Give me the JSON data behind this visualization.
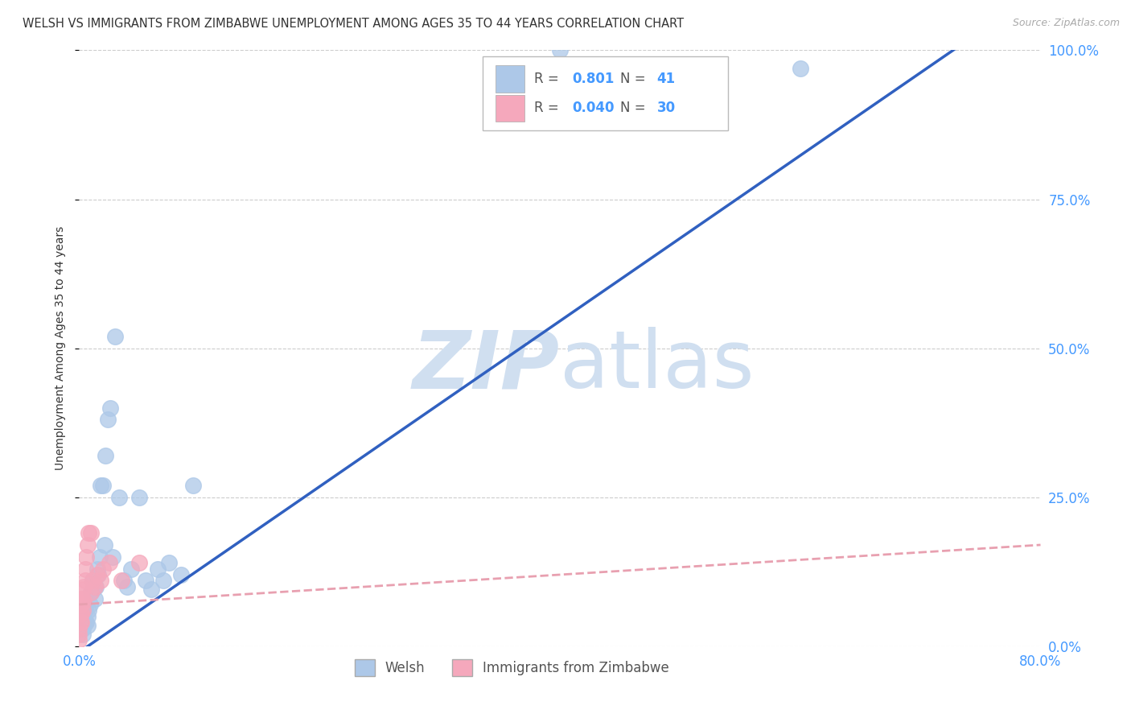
{
  "title": "WELSH VS IMMIGRANTS FROM ZIMBABWE UNEMPLOYMENT AMONG AGES 35 TO 44 YEARS CORRELATION CHART",
  "source": "Source: ZipAtlas.com",
  "ylabel": "Unemployment Among Ages 35 to 44 years",
  "ytick_values": [
    0.0,
    0.25,
    0.5,
    0.75,
    1.0
  ],
  "ytick_labels": [
    "0.0%",
    "25.0%",
    "50.0%",
    "75.0%",
    "100.0%"
  ],
  "xtick_values": [
    0.0,
    0.8
  ],
  "xtick_labels": [
    "0.0%",
    "80.0%"
  ],
  "R_welsh": 0.801,
  "N_welsh": 41,
  "R_zimbabwe": 0.04,
  "N_zimbabwe": 30,
  "welsh_color": "#adc8e8",
  "zimbabwe_color": "#f5a8bc",
  "welsh_line_color": "#3060c0",
  "zimbabwe_line_color": "#e8a0b0",
  "background_color": "#ffffff",
  "watermark_color": "#d0dff0",
  "welsh_x": [
    0.003,
    0.003,
    0.004,
    0.005,
    0.005,
    0.006,
    0.007,
    0.007,
    0.008,
    0.009,
    0.01,
    0.011,
    0.012,
    0.013,
    0.014,
    0.015,
    0.016,
    0.017,
    0.018,
    0.02,
    0.021,
    0.022,
    0.024,
    0.026,
    0.028,
    0.03,
    0.033,
    0.037,
    0.04,
    0.043,
    0.05,
    0.055,
    0.06,
    0.065,
    0.07,
    0.075,
    0.085,
    0.095,
    0.38,
    0.4,
    0.6
  ],
  "welsh_y": [
    0.02,
    0.03,
    0.035,
    0.04,
    0.06,
    0.04,
    0.035,
    0.05,
    0.06,
    0.07,
    0.09,
    0.11,
    0.095,
    0.08,
    0.1,
    0.13,
    0.12,
    0.15,
    0.27,
    0.27,
    0.17,
    0.32,
    0.38,
    0.4,
    0.15,
    0.52,
    0.25,
    0.11,
    0.1,
    0.13,
    0.25,
    0.11,
    0.095,
    0.13,
    0.11,
    0.14,
    0.12,
    0.27,
    0.97,
    1.0,
    0.97
  ],
  "zimbabwe_x": [
    0.0,
    0.0,
    0.0,
    0.001,
    0.001,
    0.001,
    0.001,
    0.002,
    0.002,
    0.002,
    0.003,
    0.003,
    0.003,
    0.004,
    0.004,
    0.005,
    0.005,
    0.006,
    0.007,
    0.008,
    0.01,
    0.01,
    0.011,
    0.013,
    0.015,
    0.018,
    0.02,
    0.025,
    0.035,
    0.05
  ],
  "zimbabwe_y": [
    0.01,
    0.02,
    0.03,
    0.04,
    0.055,
    0.07,
    0.08,
    0.04,
    0.055,
    0.075,
    0.06,
    0.08,
    0.095,
    0.075,
    0.1,
    0.11,
    0.13,
    0.15,
    0.17,
    0.19,
    0.19,
    0.09,
    0.11,
    0.1,
    0.12,
    0.11,
    0.13,
    0.14,
    0.11,
    0.14
  ],
  "xlim": [
    0.0,
    0.8
  ],
  "ylim": [
    0.0,
    1.0
  ]
}
